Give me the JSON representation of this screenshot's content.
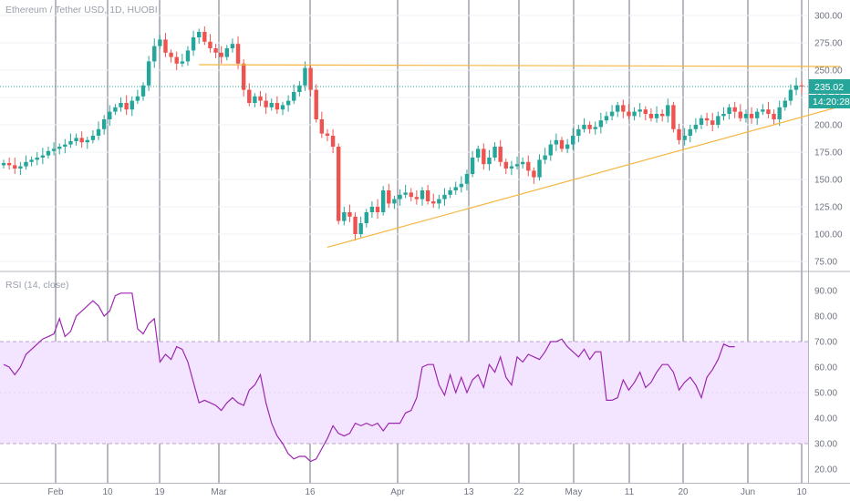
{
  "chart_data": [
    {
      "type": "candlestick",
      "title": "Ethereum / Tether USD, 1D, HUOBI",
      "ylim": [
        70,
        310
      ],
      "y_ticks": [
        "75.00",
        "100.00",
        "125.00",
        "150.00",
        "175.00",
        "200.00",
        "225.00",
        "250.00",
        "275.00",
        "300.00"
      ],
      "y_tick_values": [
        75,
        100,
        125,
        150,
        175,
        200,
        225,
        250,
        275,
        300
      ],
      "x_ticks": [
        "Feb",
        "10",
        "19",
        "Mar",
        "16",
        "Apr",
        "13",
        "22",
        "May",
        "11",
        "20",
        "Jun",
        "10"
      ],
      "last_price": "235.02",
      "last_price_value": 235.02,
      "countdown": "14:20:28",
      "grid": true,
      "colors": {
        "up": "#26a69a",
        "down": "#ef5350",
        "trendline": "#f5b640",
        "price_line": "#26a69a"
      },
      "closes": [
        165,
        163,
        160,
        162,
        166,
        168,
        170,
        172,
        176,
        178,
        180,
        182,
        185,
        188,
        184,
        186,
        190,
        196,
        205,
        212,
        216,
        220,
        214,
        222,
        226,
        236,
        258,
        272,
        278,
        266,
        262,
        256,
        258,
        268,
        280,
        285,
        276,
        270,
        266,
        262,
        270,
        274,
        256,
        232,
        220,
        226,
        222,
        216,
        220,
        214,
        218,
        222,
        230,
        236,
        252,
        232,
        205,
        192,
        190,
        180,
        112,
        120,
        116,
        100,
        110,
        120,
        125,
        120,
        140,
        128,
        132,
        136,
        138,
        134,
        132,
        140,
        130,
        128,
        132,
        136,
        140,
        143,
        146,
        155,
        170,
        178,
        164,
        170,
        180,
        166,
        160,
        162,
        164,
        166,
        158,
        152,
        168,
        172,
        182,
        186,
        178,
        182,
        190,
        196,
        200,
        196,
        198,
        204,
        208,
        212,
        218,
        212,
        208,
        212,
        214,
        210,
        206,
        210,
        208,
        218,
        196,
        186,
        190,
        196,
        200,
        206,
        204,
        200,
        208,
        210,
        216,
        212,
        206,
        210,
        206,
        212,
        214,
        210,
        205,
        216,
        222,
        232,
        236,
        235
      ]
    },
    {
      "type": "line",
      "title": "RSI (14, close)",
      "ylim": [
        15,
        97
      ],
      "y_ticks": [
        "20.00",
        "30.00",
        "40.00",
        "50.00",
        "60.00",
        "70.00",
        "80.00",
        "90.00"
      ],
      "y_tick_values": [
        20,
        30,
        40,
        50,
        60,
        70,
        80,
        90
      ],
      "band": [
        30,
        70
      ],
      "colors": {
        "line": "#9c27b0",
        "band_fill": "#f3e5ff",
        "band_edge": "#b7a3c8"
      },
      "values": [
        61,
        60,
        57,
        60,
        65,
        67,
        69,
        71,
        72,
        73,
        79,
        72,
        74,
        80,
        82,
        84,
        86,
        84,
        80,
        82,
        88,
        89,
        89,
        89,
        75,
        73,
        77,
        79,
        62,
        65,
        63,
        68,
        67,
        62,
        54,
        46,
        47,
        46,
        45,
        43,
        46,
        48,
        46,
        45,
        51,
        53,
        57,
        46,
        38,
        33,
        30,
        26,
        24,
        25,
        25,
        23,
        24,
        28,
        32,
        37,
        34,
        33,
        34,
        38,
        37,
        38,
        37,
        38,
        35,
        38,
        38,
        38,
        42,
        43,
        48,
        60,
        61,
        61,
        53,
        49,
        57,
        50,
        56,
        50,
        55,
        57,
        52,
        61,
        58,
        64,
        56,
        53,
        64,
        62,
        65,
        64,
        63,
        66,
        70,
        70,
        71,
        68,
        66,
        64,
        67,
        63,
        66,
        66,
        47,
        47,
        48,
        55,
        51,
        54,
        58,
        52,
        54,
        58,
        61,
        61,
        58,
        51,
        54,
        56,
        53,
        48,
        56,
        59,
        63,
        69,
        68,
        68
      ]
    }
  ]
}
